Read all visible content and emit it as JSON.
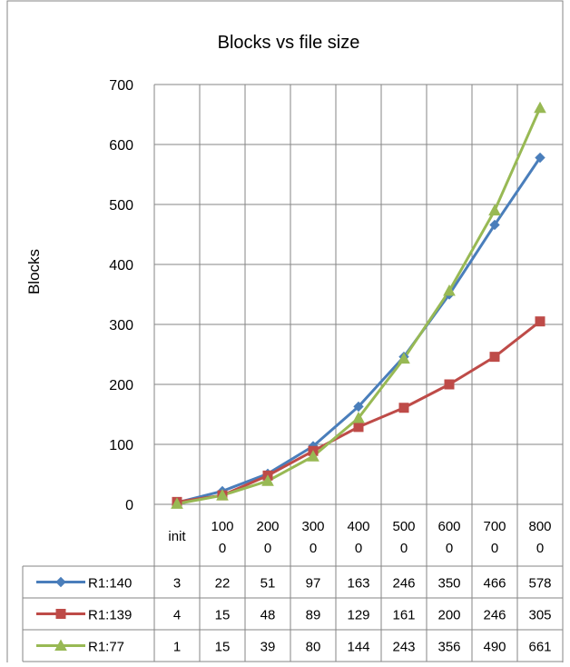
{
  "chart_data": {
    "type": "line",
    "title": "Blocks vs file size",
    "xlabel": "",
    "ylabel": "Blocks",
    "ylim": [
      0,
      700
    ],
    "yticks": [
      "0",
      "100",
      "200",
      "300",
      "400",
      "500",
      "600",
      "700"
    ],
    "grid": true,
    "legend": "data-table",
    "categories": [
      "init",
      "1000",
      "2000",
      "3000",
      "4000",
      "5000",
      "6000",
      "7000",
      "8000"
    ],
    "category_labels": [
      [
        "init"
      ],
      [
        "100",
        "0"
      ],
      [
        "200",
        "0"
      ],
      [
        "300",
        "0"
      ],
      [
        "400",
        "0"
      ],
      [
        "500",
        "0"
      ],
      [
        "600",
        "0"
      ],
      [
        "700",
        "0"
      ],
      [
        "800",
        "0"
      ]
    ],
    "series": [
      {
        "name": "R1:140",
        "color": "#4a7ebb",
        "marker": "diamond",
        "values": [
          3,
          22,
          51,
          97,
          163,
          246,
          350,
          466,
          578
        ]
      },
      {
        "name": "R1:139",
        "color": "#be4b48",
        "marker": "square",
        "values": [
          4,
          15,
          48,
          89,
          129,
          161,
          200,
          246,
          305
        ]
      },
      {
        "name": "R1:77",
        "color": "#98b954",
        "marker": "triangle",
        "values": [
          1,
          15,
          39,
          80,
          144,
          243,
          356,
          490,
          661
        ]
      }
    ]
  }
}
